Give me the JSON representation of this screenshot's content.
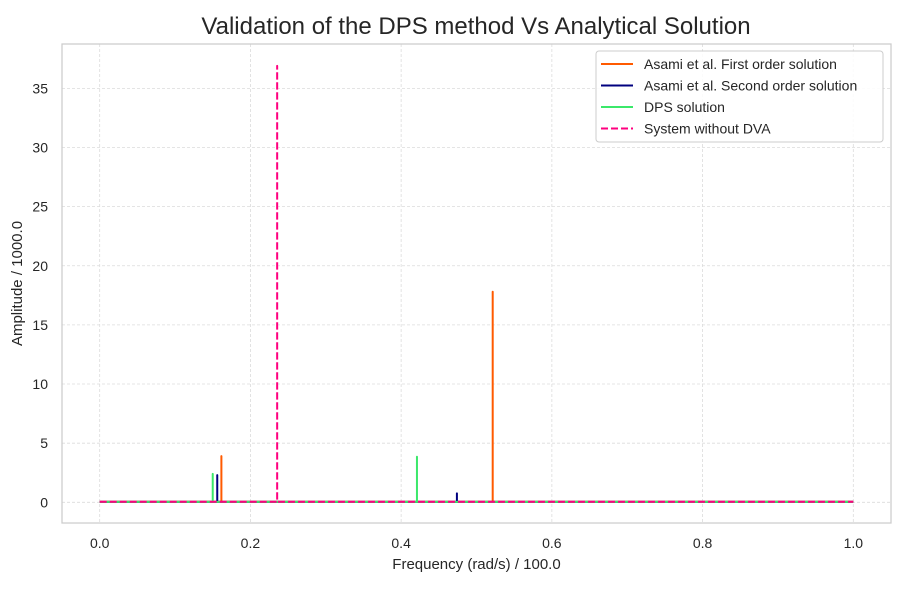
{
  "chart_data": {
    "type": "line",
    "title": "Validation of the DPS method Vs Analytical Solution",
    "xlabel": "Frequency (rad/s) / 100.0",
    "ylabel": "Amplitude / 1000.0",
    "xlim": [
      -0.05,
      1.05
    ],
    "ylim": [
      -1.75,
      38.75
    ],
    "xticks": [
      0.0,
      0.2,
      0.4,
      0.6,
      0.8,
      1.0
    ],
    "xtick_labels": [
      "0.0",
      "0.2",
      "0.4",
      "0.6",
      "0.8",
      "1.0"
    ],
    "yticks": [
      0,
      5,
      10,
      15,
      20,
      25,
      30,
      35
    ],
    "ytick_labels": [
      "0",
      "5",
      "10",
      "15",
      "20",
      "25",
      "30",
      "35"
    ],
    "grid": true,
    "legend_position": "top-right",
    "series": [
      {
        "name": "Asami et al. First order solution",
        "color": "#ff5a00",
        "dash": "solid",
        "x": [
          0.0,
          0.1615,
          0.1615,
          0.1615,
          0.5215,
          0.5215,
          0.5215,
          1.0
        ],
        "y": [
          0.05,
          0.05,
          3.9,
          0.05,
          0.05,
          17.8,
          0.05,
          0.05
        ]
      },
      {
        "name": "Asami et al. Second order solution",
        "color": "#00007f",
        "dash": "solid",
        "x": [
          0.0,
          0.156,
          0.156,
          0.156,
          0.474,
          0.474,
          0.474,
          1.0
        ],
        "y": [
          0.04,
          0.04,
          2.3,
          0.04,
          0.04,
          0.75,
          0.04,
          0.04
        ]
      },
      {
        "name": "DPS solution",
        "color": "#3be86a",
        "dash": "solid",
        "x": [
          0.0,
          0.15,
          0.15,
          0.15,
          0.421,
          0.421,
          0.421,
          1.0
        ],
        "y": [
          0.04,
          0.04,
          2.4,
          0.04,
          0.04,
          3.85,
          0.04,
          0.04
        ]
      },
      {
        "name": "System without DVA",
        "color": "#ff007f",
        "dash": "dashed",
        "x": [
          0.0,
          0.2355,
          0.2355,
          0.2355,
          1.0
        ],
        "y": [
          0.05,
          0.05,
          36.9,
          0.05,
          0.05
        ]
      }
    ]
  }
}
